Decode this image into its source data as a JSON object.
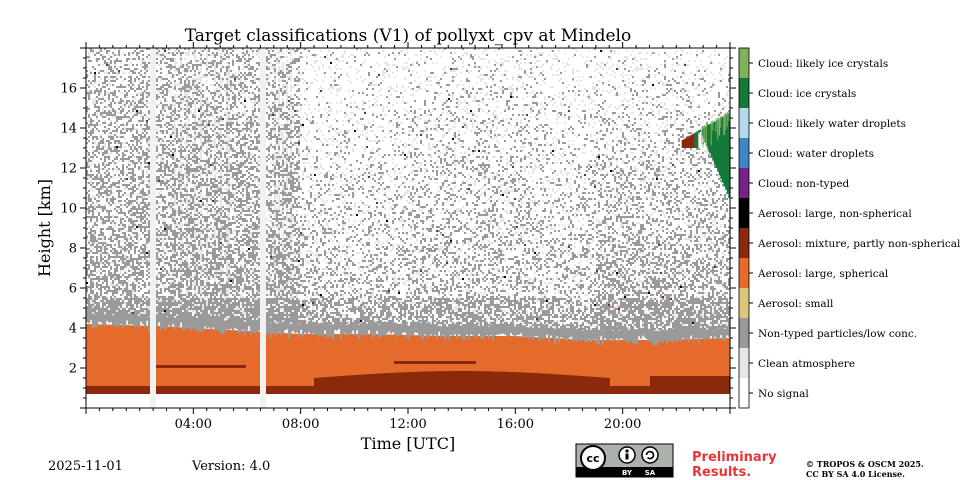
{
  "chart_data": {
    "type": "heatmap",
    "title": "Target classifications (V1) of pollyxt_cpv at Mindelo",
    "xlabel": "Time [UTC]",
    "ylabel": "Height [km]",
    "xlim_hours": [
      0,
      24
    ],
    "ylim_km": [
      0,
      18
    ],
    "xticks": [
      {
        "value": 4,
        "label": "04:00"
      },
      {
        "value": 8,
        "label": "08:00"
      },
      {
        "value": 12,
        "label": "12:00"
      },
      {
        "value": 16,
        "label": "16:00"
      },
      {
        "value": 20,
        "label": "20:00"
      }
    ],
    "yticks": [
      {
        "value": 2,
        "label": "2"
      },
      {
        "value": 4,
        "label": "4"
      },
      {
        "value": 6,
        "label": "6"
      },
      {
        "value": 8,
        "label": "8"
      },
      {
        "value": 10,
        "label": "10"
      },
      {
        "value": 12,
        "label": "12"
      },
      {
        "value": 14,
        "label": "14"
      },
      {
        "value": 16,
        "label": "16"
      }
    ],
    "legend": [
      {
        "label": "Cloud: likely ice crystals",
        "color": "#7fb25a"
      },
      {
        "label": "Cloud: ice crystals",
        "color": "#147a3a"
      },
      {
        "label": "Cloud: likely water droplets",
        "color": "#b5d9f0"
      },
      {
        "label": "Cloud: water droplets",
        "color": "#3f86c6"
      },
      {
        "label": "Cloud: non-typed",
        "color": "#7a2089"
      },
      {
        "label": "Aerosol: large, non-spherical",
        "color": "#000000"
      },
      {
        "label": "Aerosol: mixture, partly non-spherical",
        "color": "#8b2a0a"
      },
      {
        "label": "Aerosol: large, spherical",
        "color": "#e56b2c"
      },
      {
        "label": "Aerosol: small",
        "color": "#dcc57a"
      },
      {
        "label": "Non-typed particles/low conc.",
        "color": "#9a9a9a"
      },
      {
        "label": "Clean atmosphere",
        "color": "#e6e6e6"
      },
      {
        "label": "No signal",
        "color": "#ffffff"
      }
    ],
    "layers": {
      "boundary_layer_top_km": [
        4.2,
        4.1,
        3.9,
        3.7,
        3.7,
        3.6,
        3.6,
        3.4,
        3.4,
        3.5
      ],
      "dominant_boundary_layer_class": "Aerosol: large, spherical",
      "elevated_layer_class": "Non-typed particles/low conc.",
      "cloud_time_range_hours": [
        22.2,
        24
      ],
      "cloud_height_range_km": [
        10.5,
        14.8
      ],
      "no_signal_gaps_hours": [
        2.5,
        6.6
      ]
    }
  },
  "footer": {
    "date": "2025-11-01",
    "version": "Version: 4.0",
    "preliminary_line1": "Preliminary",
    "preliminary_line2": "Results.",
    "copyright_line1": "© TROPOS & OSCM 2025.",
    "copyright_line2": "CC BY SA 4.0 License.",
    "license_by": "BY",
    "license_sa": "SA"
  }
}
